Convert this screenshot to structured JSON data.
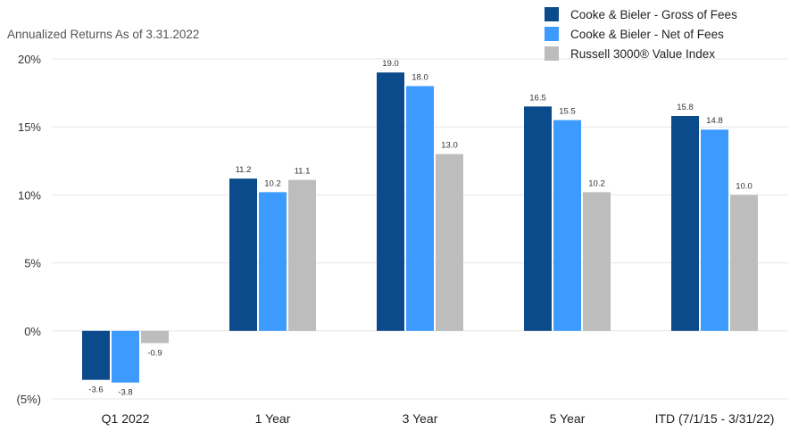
{
  "chart_data": {
    "type": "bar",
    "subtitle": "Annualized Returns As of 3.31.2022",
    "categories": [
      "Q1 2022",
      "1 Year",
      "3 Year",
      "5 Year",
      "ITD (7/1/15 - 3/31/22)"
    ],
    "series": [
      {
        "name": "Cooke & Bieler - Gross of Fees",
        "color": "#0b4a8b",
        "values": [
          -3.6,
          11.2,
          19.0,
          16.5,
          15.8
        ]
      },
      {
        "name": "Cooke & Bieler - Net of Fees",
        "color": "#3d9bff",
        "values": [
          -3.8,
          10.2,
          18.0,
          15.5,
          14.8
        ]
      },
      {
        "name": "Russell 3000® Value Index",
        "color": "#bdbdbd",
        "values": [
          -0.9,
          11.1,
          13.0,
          10.2,
          10.0
        ]
      }
    ],
    "ylim": [
      -5,
      20
    ],
    "yticks": [
      -5,
      0,
      5,
      10,
      15,
      20
    ],
    "ytick_labels": [
      "(5%)",
      "0%",
      "5%",
      "10%",
      "15%",
      "20%"
    ],
    "grid": true,
    "legend_position": "top-right"
  }
}
